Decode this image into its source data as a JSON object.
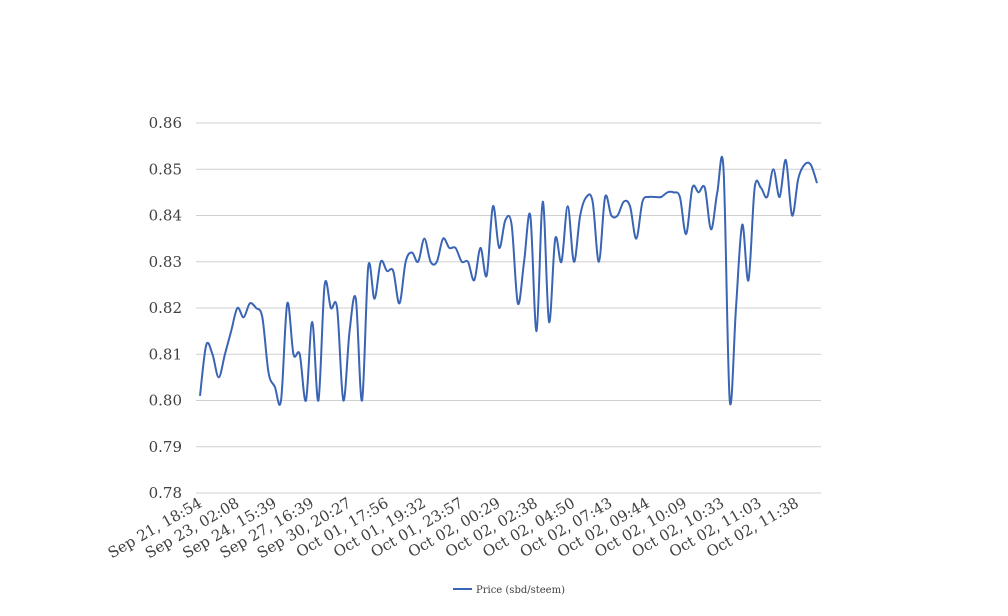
{
  "chart_data": {
    "type": "line",
    "ylim": [
      0.78,
      0.86
    ],
    "yticks": [
      "0.78",
      "0.79",
      "0.80",
      "0.81",
      "0.82",
      "0.83",
      "0.84",
      "0.85",
      "0.86"
    ],
    "grid": true,
    "legend_position": "bottom",
    "x_tick_labels": [
      "Sep 21, 18:54",
      "Sep 23, 02:08",
      "Sep 24, 15:39",
      "Sep 27, 16:39",
      "Sep 30, 20:27",
      "Oct 01, 17:56",
      "Oct 01, 19:32",
      "Oct 01, 23:57",
      "Oct 02, 00:29",
      "Oct 02, 02:38",
      "Oct 02, 04:50",
      "Oct 02, 07:43",
      "Oct 02, 09:44",
      "Oct 02, 10:09",
      "Oct 02, 10:33",
      "Oct 02, 11:03",
      "Oct 02, 11:38"
    ],
    "series": [
      {
        "name": "Price (sbd/steem)",
        "color": "#3a64b4",
        "values": [
          0.801,
          0.812,
          0.81,
          0.805,
          0.81,
          0.815,
          0.82,
          0.818,
          0.821,
          0.82,
          0.818,
          0.806,
          0.803,
          0.8,
          0.821,
          0.81,
          0.81,
          0.8,
          0.817,
          0.8,
          0.825,
          0.82,
          0.82,
          0.8,
          0.815,
          0.822,
          0.8,
          0.829,
          0.822,
          0.83,
          0.828,
          0.828,
          0.821,
          0.83,
          0.832,
          0.83,
          0.835,
          0.83,
          0.83,
          0.835,
          0.833,
          0.833,
          0.83,
          0.83,
          0.826,
          0.833,
          0.827,
          0.842,
          0.833,
          0.839,
          0.838,
          0.821,
          0.83,
          0.84,
          0.815,
          0.843,
          0.817,
          0.835,
          0.83,
          0.842,
          0.83,
          0.84,
          0.844,
          0.843,
          0.83,
          0.844,
          0.84,
          0.84,
          0.843,
          0.842,
          0.835,
          0.843,
          0.844,
          0.844,
          0.844,
          0.845,
          0.845,
          0.844,
          0.836,
          0.846,
          0.845,
          0.846,
          0.837,
          0.845,
          0.85,
          0.8,
          0.82,
          0.838,
          0.826,
          0.846,
          0.846,
          0.844,
          0.85,
          0.844,
          0.852,
          0.84,
          0.848,
          0.851,
          0.851,
          0.847
        ]
      }
    ]
  }
}
